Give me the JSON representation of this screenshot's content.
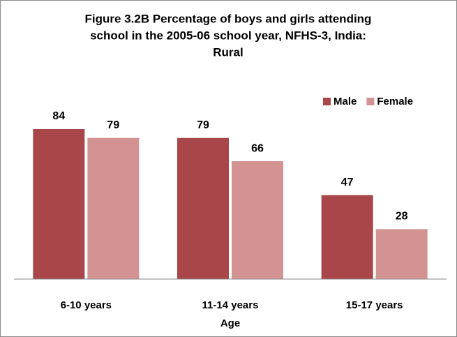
{
  "chart_data": {
    "type": "bar",
    "title": [
      "Figure 3.2B Percentage of boys and girls attending",
      "school in the 2005-06 school year, NFHS-3, India:",
      "Rural"
    ],
    "x_label": "Age",
    "categories": [
      "6-10 years",
      "11-14 years",
      "15-17 years"
    ],
    "series": [
      {
        "name": "Male",
        "color": "#a8464a",
        "values": [
          84,
          79,
          47
        ]
      },
      {
        "name": "Female",
        "color": "#d39393",
        "values": [
          79,
          66,
          28
        ]
      }
    ],
    "ylim": [
      0,
      100
    ],
    "legend": "top-right"
  }
}
